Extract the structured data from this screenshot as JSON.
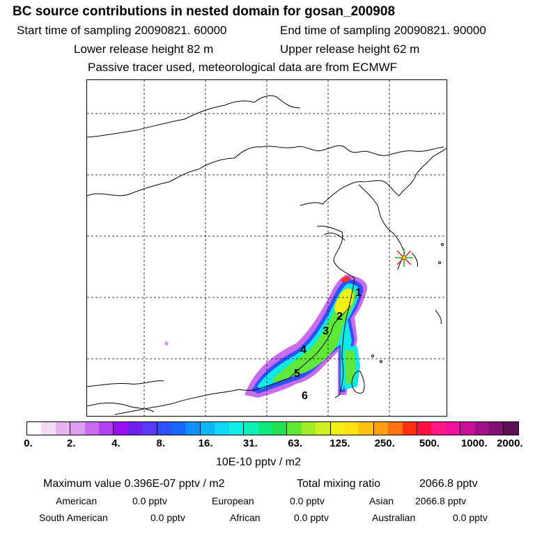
{
  "header": {
    "title": "BC  source contributions in nested domain for gosan_200908",
    "start_label": "Start time of sampling 20090821. 60000",
    "end_label": "End time of sampling 20090821. 90000",
    "lower_label": "Lower release height   82 m",
    "upper_label": "Upper release height   62 m",
    "note": "Passive tracer used, meteorological data are from ECMWF"
  },
  "map": {
    "receptor_icon": "star-marker-icon",
    "region_labels": [
      "1",
      "2",
      "3",
      "4",
      "5",
      "6"
    ]
  },
  "colorbar": {
    "colors": [
      "#ffffff",
      "#f5dcf5",
      "#e8b4ef",
      "#dd9eef",
      "#c86cf0",
      "#b040f0",
      "#9a10f0",
      "#7020f0",
      "#5a38f4",
      "#3050f8",
      "#1868f8",
      "#1090f8",
      "#10b4f8",
      "#10d8f4",
      "#10f0e8",
      "#10f0b8",
      "#10e880",
      "#20e050",
      "#60e838",
      "#a0ec28",
      "#ccf020",
      "#f0f018",
      "#ffe010",
      "#ffc010",
      "#ffa010",
      "#ff7010",
      "#ff3010",
      "#ff1040",
      "#ff1880",
      "#f010a0",
      "#c81098",
      "#a01088",
      "#801070",
      "#601058"
    ],
    "tick_labels": [
      "0.",
      "2.",
      "4.",
      "8.",
      "16.",
      "31.",
      "63.",
      "125.",
      "250.",
      "500.",
      "1000.",
      "2000."
    ],
    "unit": "10E-10 pptv / m2"
  },
  "stats": {
    "max_label": "Maximum value  0.396E-07 pptv / m2",
    "total_label": "Total mixing ratio",
    "total_value": "2066.8 pptv",
    "american_label": "American",
    "american_value": "0.0 pptv",
    "european_label": "European",
    "european_value": "0.0 pptv",
    "asian_label": "Asian",
    "asian_value": "2066.8 pptv",
    "south_american_label": "South American",
    "south_american_value": "0.0 pptv",
    "african_label": "African",
    "african_value": "0.0 pptv",
    "australian_label": "Australian",
    "australian_value": "0.0 pptv"
  }
}
